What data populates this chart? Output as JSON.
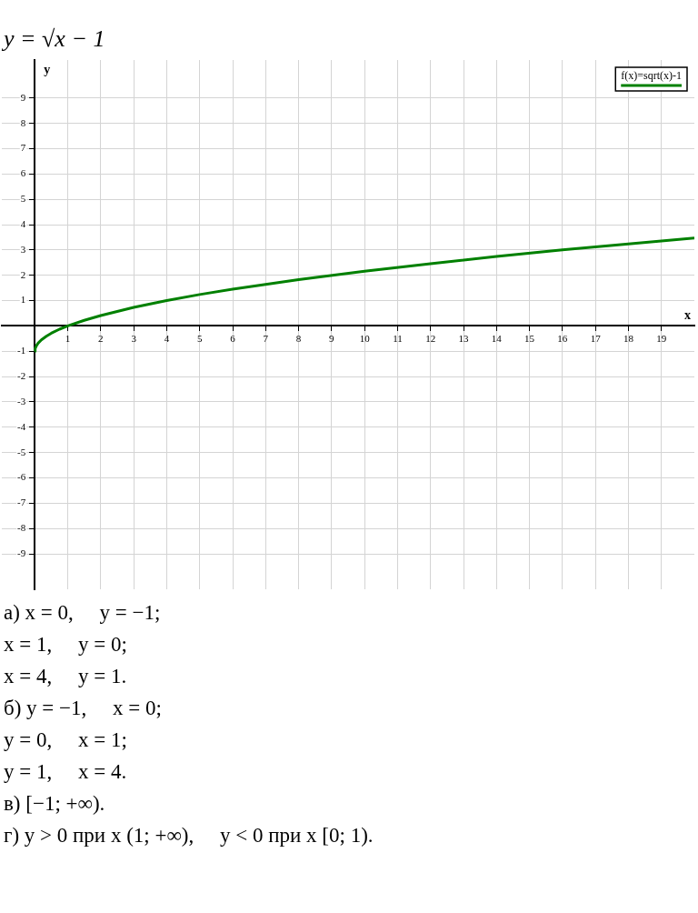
{
  "chart_data": {
    "type": "line",
    "title": "y = √x − 1",
    "xlabel": "x",
    "ylabel": "y",
    "x": [
      0,
      0.01,
      0.05,
      0.1,
      0.2,
      0.35,
      0.5,
      0.75,
      1,
      1.5,
      2,
      3,
      4,
      5,
      6,
      8,
      10,
      12,
      14,
      16,
      18,
      20
    ],
    "series": [
      {
        "name": "f(x)=sqrt(x)-1",
        "color": "#008000",
        "values": [
          -1,
          -0.9,
          -0.78,
          -0.68,
          -0.55,
          -0.41,
          -0.29,
          -0.13,
          0,
          0.22,
          0.41,
          0.73,
          1,
          1.24,
          1.45,
          1.83,
          2.16,
          2.46,
          2.74,
          3,
          3.24,
          3.47
        ]
      }
    ],
    "xlim": [
      -1,
      20
    ],
    "xticks": [
      1,
      2,
      3,
      4,
      5,
      6,
      7,
      8,
      9,
      10,
      11,
      12,
      13,
      14,
      15,
      16,
      17,
      18,
      19
    ],
    "ylim": [
      -10.4,
      10.5
    ],
    "yticks": [
      -9,
      -8,
      -7,
      -6,
      -5,
      -4,
      -3,
      -2,
      -1,
      1,
      2,
      3,
      4,
      5,
      6,
      7,
      8,
      9
    ],
    "grid": true,
    "legend": "top right",
    "marker": "none",
    "line_style": "solid",
    "annotations": [
      "а) x = 0,     y = −1;",
      "x = 1,     y = 0;",
      "x = 4,     y = 1.",
      "б) y = −1,     x = 0;",
      "y = 0,     x = 1;",
      "y = 1,     x = 4.",
      "в) [−1; +∞).",
      "г) y > 0 при x (1; +∞),     y < 0 при x [0; 1)."
    ]
  }
}
